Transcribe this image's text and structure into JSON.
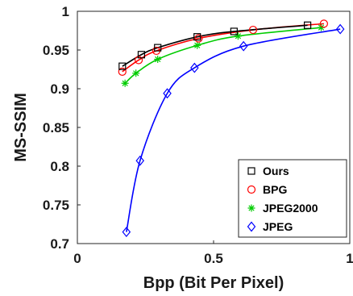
{
  "chart_data": {
    "type": "line",
    "title": "",
    "xlabel": "Bpp (Bit Per Pixel)",
    "ylabel": "MS-SSIM",
    "xlim": [
      0,
      1
    ],
    "ylim": [
      0.7,
      1
    ],
    "xticks": [
      0,
      0.5,
      1
    ],
    "xtick_labels": [
      "0",
      "0.5",
      "1"
    ],
    "yticks": [
      0.7,
      0.75,
      0.8,
      0.85,
      0.9,
      0.95,
      1
    ],
    "ytick_labels": [
      "0.7",
      "0.75",
      "0.8",
      "0.85",
      "0.9",
      "0.95",
      "1"
    ],
    "grid": false,
    "legend_position": "bottom-right",
    "series": [
      {
        "name": "Ours",
        "color": "#000000",
        "marker": "square",
        "x": [
          0.165,
          0.235,
          0.295,
          0.44,
          0.575,
          0.845
        ],
        "y": [
          0.929,
          0.944,
          0.953,
          0.967,
          0.974,
          0.982
        ]
      },
      {
        "name": "BPG",
        "color": "#ff0000",
        "marker": "circle",
        "x": [
          0.165,
          0.225,
          0.29,
          0.445,
          0.645,
          0.905
        ],
        "y": [
          0.922,
          0.937,
          0.949,
          0.965,
          0.976,
          0.984
        ]
      },
      {
        "name": "JPEG2000",
        "color": "#00cc00",
        "marker": "asterisk",
        "x": [
          0.175,
          0.215,
          0.295,
          0.44,
          0.59,
          0.895
        ],
        "y": [
          0.907,
          0.92,
          0.938,
          0.956,
          0.968,
          0.979
        ]
      },
      {
        "name": "JPEG",
        "color": "#0000ff",
        "marker": "diamond",
        "x": [
          0.18,
          0.23,
          0.33,
          0.43,
          0.61,
          0.965
        ],
        "y": [
          0.715,
          0.807,
          0.894,
          0.927,
          0.955,
          0.977
        ]
      }
    ]
  }
}
